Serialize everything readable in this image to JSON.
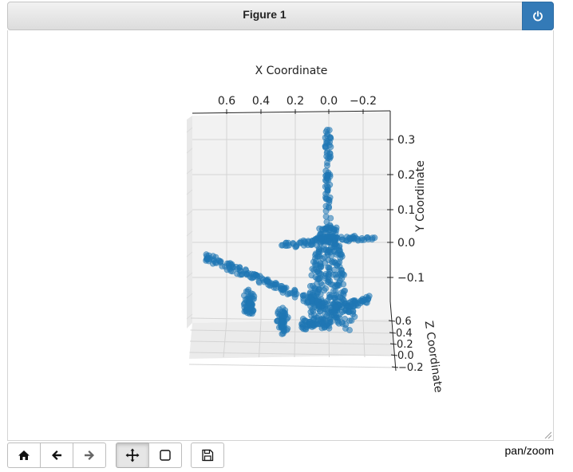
{
  "window": {
    "title": "Figure 1"
  },
  "status": "pan/zoom",
  "toolbar": {
    "buttons": [
      {
        "name": "home",
        "icon": "home-icon"
      },
      {
        "name": "back",
        "icon": "arrow-left-icon"
      },
      {
        "name": "forward",
        "icon": "arrow-right-icon"
      },
      {
        "name": "pan",
        "icon": "move-icon",
        "active": true
      },
      {
        "name": "zoom",
        "icon": "square-icon"
      },
      {
        "name": "save",
        "icon": "floppy-icon"
      }
    ]
  },
  "chart_data": {
    "type": "scatter",
    "title": "",
    "xlabel": "X Coordinate",
    "ylabel": "Y Coordinate",
    "zlabel": "Z Coordinate",
    "x_ticks": [
      "0.6",
      "0.4",
      "0.2",
      "0.0",
      "−0.2"
    ],
    "y_ticks": [
      "0.3",
      "0.2",
      "0.1",
      "0.0",
      "−0.1"
    ],
    "z_ticks": [
      "0.6",
      "0.4",
      "0.2",
      "0.0",
      "−0.2"
    ],
    "xlim": [
      0.72,
      -0.35
    ],
    "ylim": [
      -0.2,
      0.37
    ],
    "zlim": [
      -0.25,
      0.7
    ],
    "color": "#1f77b4",
    "grid": true
  }
}
